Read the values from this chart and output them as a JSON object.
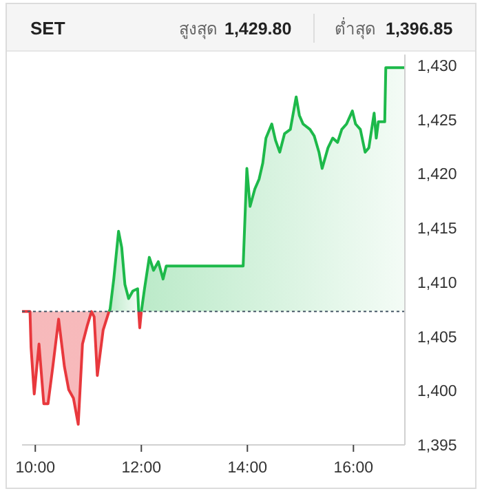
{
  "chart_data": {
    "type": "area",
    "title": "SET",
    "annotations": [
      "สูงสุด",
      "1,429.80",
      "ต่ำสุด",
      "1,396.85"
    ],
    "xlim": [
      9.75,
      16.97
    ],
    "xticks": [
      {
        "value": 10,
        "label": "10:00"
      },
      {
        "value": 12,
        "label": "12:00"
      },
      {
        "value": 14,
        "label": "14:00"
      },
      {
        "value": 16,
        "label": "16:00"
      }
    ],
    "ylim": [
      1395,
      1431
    ],
    "yticks": [
      {
        "value": 1395,
        "label": "1,395"
      },
      {
        "value": 1400,
        "label": "1,400"
      },
      {
        "value": 1405,
        "label": "1,405"
      },
      {
        "value": 1410,
        "label": "1,410"
      },
      {
        "value": 1415,
        "label": "1,415"
      },
      {
        "value": 1420,
        "label": "1,420"
      },
      {
        "value": 1425,
        "label": "1,425"
      },
      {
        "value": 1430,
        "label": "1,430"
      }
    ],
    "grid": false,
    "marker": "none",
    "line_style": "solid",
    "ref_lines": [
      {
        "axis": "y",
        "value": 1407.3,
        "color": "#4a5a6a",
        "line_style": "dotted"
      }
    ],
    "series": [
      {
        "color": "#e8383d",
        "x": [
          9.75,
          9.9,
          9.92,
          9.98,
          10.07,
          10.16,
          10.24,
          10.33,
          10.44,
          10.55,
          10.63,
          10.72,
          10.81,
          10.89,
          10.98,
          11.06,
          11.11,
          11.17,
          11.28,
          11.37,
          11.39
        ],
        "values": [
          1407.3,
          1407.3,
          1404,
          1399.7,
          1404.3,
          1398.8,
          1398.8,
          1402.2,
          1406.6,
          1402.2,
          1400.1,
          1399.3,
          1396.9,
          1404.3,
          1406.0,
          1407.3,
          1406.8,
          1401.4,
          1405.6,
          1407.0,
          1407.3
        ]
      },
      {
        "color": "#e8383d",
        "x": [
          11.95,
          11.97,
          12.0
        ],
        "values": [
          1407.3,
          1405.8,
          1407.3
        ]
      },
      {
        "color": "#1db94a",
        "x": [
          11.39,
          11.41,
          11.48,
          11.57,
          11.63,
          11.69,
          11.76,
          11.84,
          11.93,
          11.95
        ],
        "values": [
          1407.3,
          1407.5,
          1410.3,
          1414.7,
          1413.2,
          1409.8,
          1408.5,
          1409.2,
          1409.4,
          1407.3
        ]
      },
      {
        "color": "#1db94a",
        "x": [
          12.0,
          12.06,
          12.15,
          12.23,
          12.32,
          12.41,
          12.47,
          13.92,
          13.99,
          14.05,
          14.14,
          14.22,
          14.29,
          14.35,
          14.46,
          14.53,
          14.61,
          14.7,
          14.81,
          14.92,
          14.98,
          15.05,
          15.18,
          15.26,
          15.35,
          15.41,
          15.52,
          15.61,
          15.7,
          15.78,
          15.87,
          15.98,
          16.04,
          16.13,
          16.22,
          16.29,
          16.39,
          16.43,
          16.47,
          16.59,
          16.61,
          16.97
        ],
        "values": [
          1407.3,
          1409.4,
          1412.3,
          1411.1,
          1411.9,
          1410.3,
          1411.5,
          1411.5,
          1420.5,
          1417.0,
          1418.6,
          1419.5,
          1421.0,
          1423.3,
          1424.6,
          1423.1,
          1422.0,
          1423.7,
          1424.1,
          1427.1,
          1425.4,
          1424.6,
          1424.1,
          1423.5,
          1422.0,
          1420.5,
          1422.4,
          1423.3,
          1422.9,
          1424.1,
          1424.6,
          1425.8,
          1424.6,
          1424.1,
          1422.0,
          1422.4,
          1425.6,
          1423.3,
          1424.8,
          1424.8,
          1429.8,
          1429.8
        ]
      }
    ]
  }
}
